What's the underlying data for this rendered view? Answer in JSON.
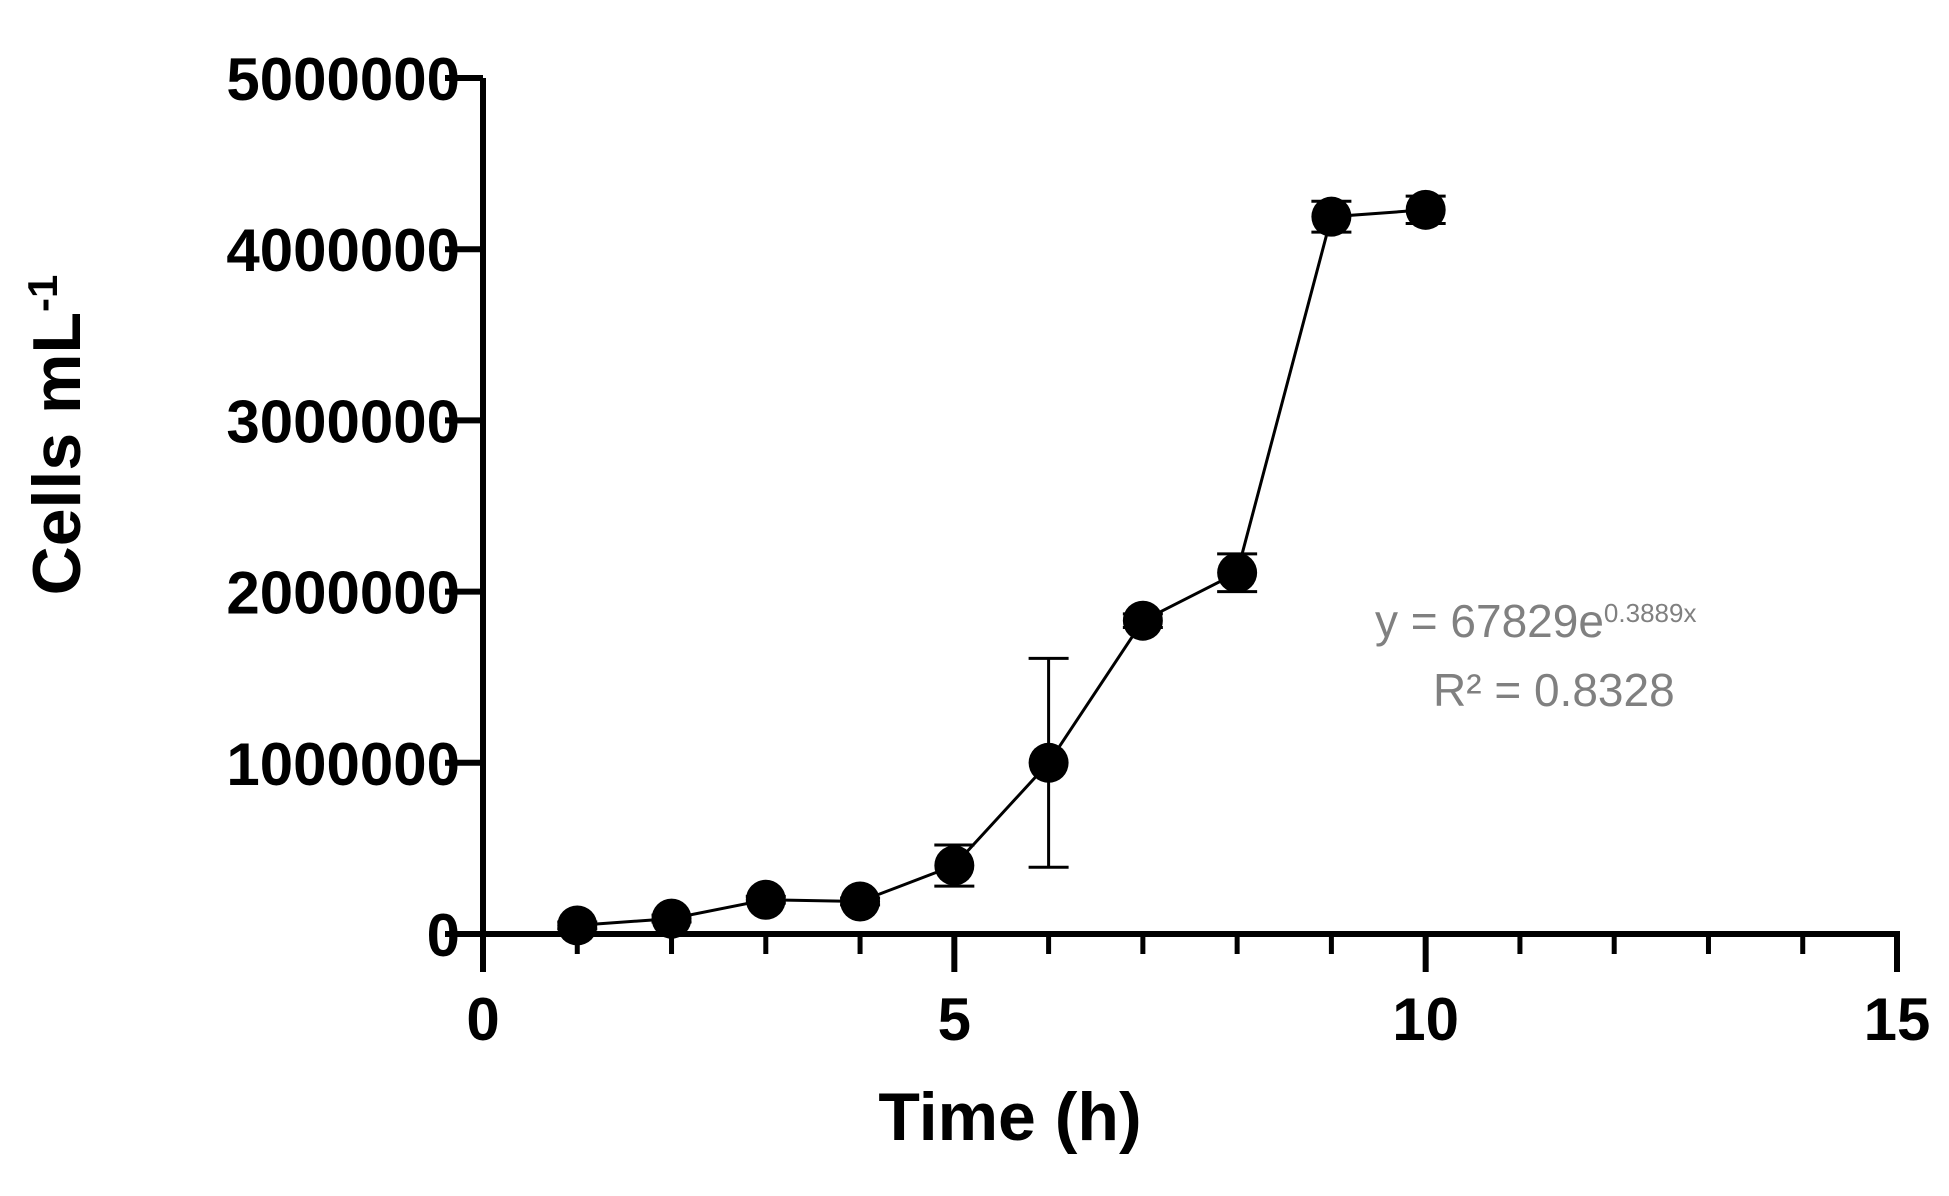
{
  "chart_data": {
    "type": "line",
    "title": "",
    "xlabel": "Time (h)",
    "ylabel": {
      "text": "Cells mL",
      "superscript": "-1"
    },
    "xlim": [
      0,
      15
    ],
    "ylim": [
      0,
      5000000
    ],
    "x_major_ticks": [
      0,
      5,
      10,
      15
    ],
    "x_minor_ticks": [
      1,
      2,
      3,
      4,
      6,
      7,
      8,
      9,
      11,
      12,
      13,
      14
    ],
    "y_ticks": [
      0,
      1000000,
      2000000,
      3000000,
      4000000,
      5000000
    ],
    "x_tick_labels": [
      "0",
      "5",
      "10",
      "15"
    ],
    "y_tick_labels": [
      "0",
      "1000000",
      "2000000",
      "3000000",
      "4000000",
      "5000000"
    ],
    "grid": false,
    "series": [
      {
        "x": [
          1,
          2,
          3,
          4,
          5,
          6,
          7,
          8,
          9,
          10
        ],
        "y": [
          50000,
          90000,
          200000,
          190000,
          400000,
          1000000,
          1830000,
          2110000,
          4190000,
          4230000
        ],
        "error": [
          20000,
          20000,
          20000,
          20000,
          120000,
          610000,
          40000,
          110000,
          90000,
          80000
        ]
      }
    ],
    "annotations": [
      {
        "text": "y = 67829e",
        "superscript": "0.3889x"
      },
      {
        "text": "R² = 0.8328"
      }
    ],
    "colors": {
      "series": "#000000",
      "annotation": "#808080"
    }
  }
}
